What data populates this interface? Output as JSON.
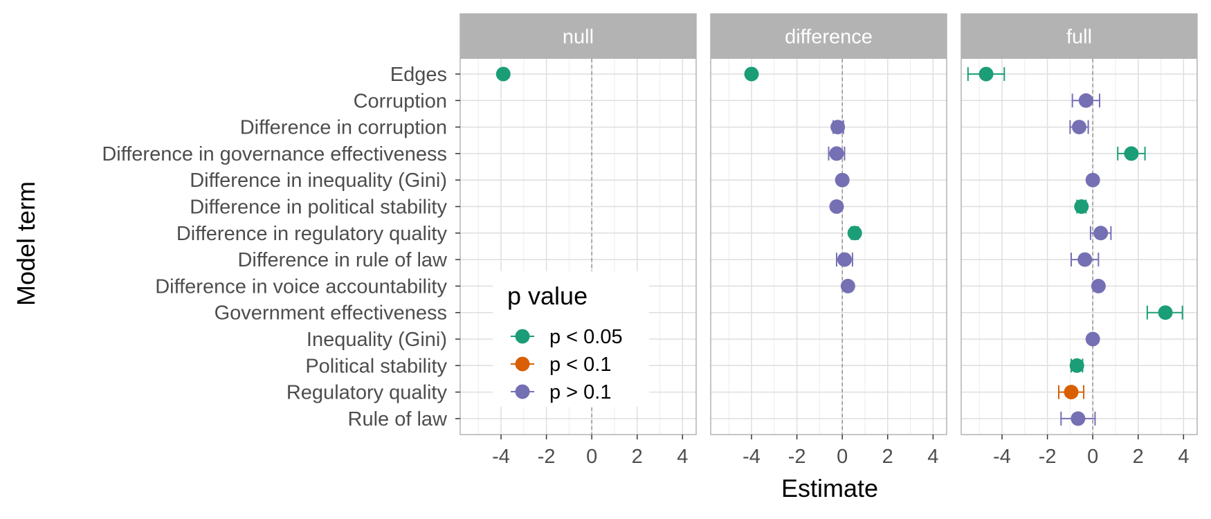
{
  "chart_data": {
    "type": "scatter",
    "subtype": "coefficient-plot-with-error-bars",
    "xlabel": "Estimate",
    "ylabel": "Model term",
    "xlim": [
      -5.8,
      4.6
    ],
    "x_ticks": [
      -4,
      -2,
      0,
      2,
      4
    ],
    "x_tick_labels": [
      "-4",
      "-2",
      "0",
      "2",
      "4"
    ],
    "grid": true,
    "reference_line_x": 0,
    "terms": [
      "Edges",
      "Corruption",
      "Difference in corruption",
      "Difference in governance effectiveness",
      "Difference in inequality (Gini)",
      "Difference in political stability",
      "Difference in regulatory quality",
      "Difference in rule of law",
      "Difference in voice accountability",
      "Government effectiveness",
      "Inequality (Gini)",
      "Political stability",
      "Regulatory quality",
      "Rule of law"
    ],
    "legend": {
      "title": "p value",
      "placement": "inside-bottom-left",
      "items": [
        {
          "label": "p < 0.05",
          "color": "#1b9e77"
        },
        {
          "label": "p < 0.1",
          "color": "#d95f02"
        },
        {
          "label": "p > 0.1",
          "color": "#7570b3"
        }
      ]
    },
    "panels": [
      {
        "name": "null",
        "points": [
          {
            "term": "Edges",
            "estimate": -3.9,
            "low": -3.9,
            "high": -3.9,
            "group": 0
          }
        ]
      },
      {
        "name": "difference",
        "points": [
          {
            "term": "Edges",
            "estimate": -4.0,
            "low": -4.0,
            "high": -4.0,
            "group": 0
          },
          {
            "term": "Difference in corruption",
            "estimate": -0.2,
            "low": -0.4,
            "high": 0.05,
            "group": 2
          },
          {
            "term": "Difference in governance effectiveness",
            "estimate": -0.25,
            "low": -0.6,
            "high": 0.1,
            "group": 2
          },
          {
            "term": "Difference in inequality (Gini)",
            "estimate": 0.0,
            "low": -0.05,
            "high": 0.05,
            "group": 2
          },
          {
            "term": "Difference in political stability",
            "estimate": -0.25,
            "low": -0.3,
            "high": -0.2,
            "group": 2
          },
          {
            "term": "Difference in regulatory quality",
            "estimate": 0.55,
            "low": 0.4,
            "high": 0.7,
            "group": 0
          },
          {
            "term": "Difference in rule of law",
            "estimate": 0.1,
            "low": -0.25,
            "high": 0.45,
            "group": 2
          },
          {
            "term": "Difference in voice accountability",
            "estimate": 0.25,
            "low": 0.2,
            "high": 0.3,
            "group": 2
          }
        ]
      },
      {
        "name": "full",
        "points": [
          {
            "term": "Edges",
            "estimate": -4.7,
            "low": -5.5,
            "high": -3.9,
            "group": 0
          },
          {
            "term": "Corruption",
            "estimate": -0.3,
            "low": -0.9,
            "high": 0.3,
            "group": 2
          },
          {
            "term": "Difference in corruption",
            "estimate": -0.6,
            "low": -1.0,
            "high": -0.2,
            "group": 2
          },
          {
            "term": "Difference in governance effectiveness",
            "estimate": 1.7,
            "low": 1.1,
            "high": 2.3,
            "group": 0
          },
          {
            "term": "Difference in inequality (Gini)",
            "estimate": 0.0,
            "low": -0.05,
            "high": 0.05,
            "group": 2
          },
          {
            "term": "Difference in political stability",
            "estimate": -0.5,
            "low": -0.7,
            "high": -0.3,
            "group": 0
          },
          {
            "term": "Difference in regulatory quality",
            "estimate": 0.35,
            "low": -0.1,
            "high": 0.8,
            "group": 2
          },
          {
            "term": "Difference in rule of law",
            "estimate": -0.35,
            "low": -0.95,
            "high": 0.25,
            "group": 2
          },
          {
            "term": "Difference in voice accountability",
            "estimate": 0.25,
            "low": 0.2,
            "high": 0.3,
            "group": 2
          },
          {
            "term": "Government effectiveness",
            "estimate": 3.2,
            "low": 2.4,
            "high": 3.95,
            "group": 0
          },
          {
            "term": "Inequality (Gini)",
            "estimate": 0.0,
            "low": -0.05,
            "high": 0.05,
            "group": 2
          },
          {
            "term": "Political stability",
            "estimate": -0.7,
            "low": -0.95,
            "high": -0.45,
            "group": 0
          },
          {
            "term": "Regulatory quality",
            "estimate": -0.95,
            "low": -1.5,
            "high": -0.4,
            "group": 1
          },
          {
            "term": "Rule of law",
            "estimate": -0.65,
            "low": -1.4,
            "high": 0.1,
            "group": 2
          }
        ]
      }
    ]
  }
}
